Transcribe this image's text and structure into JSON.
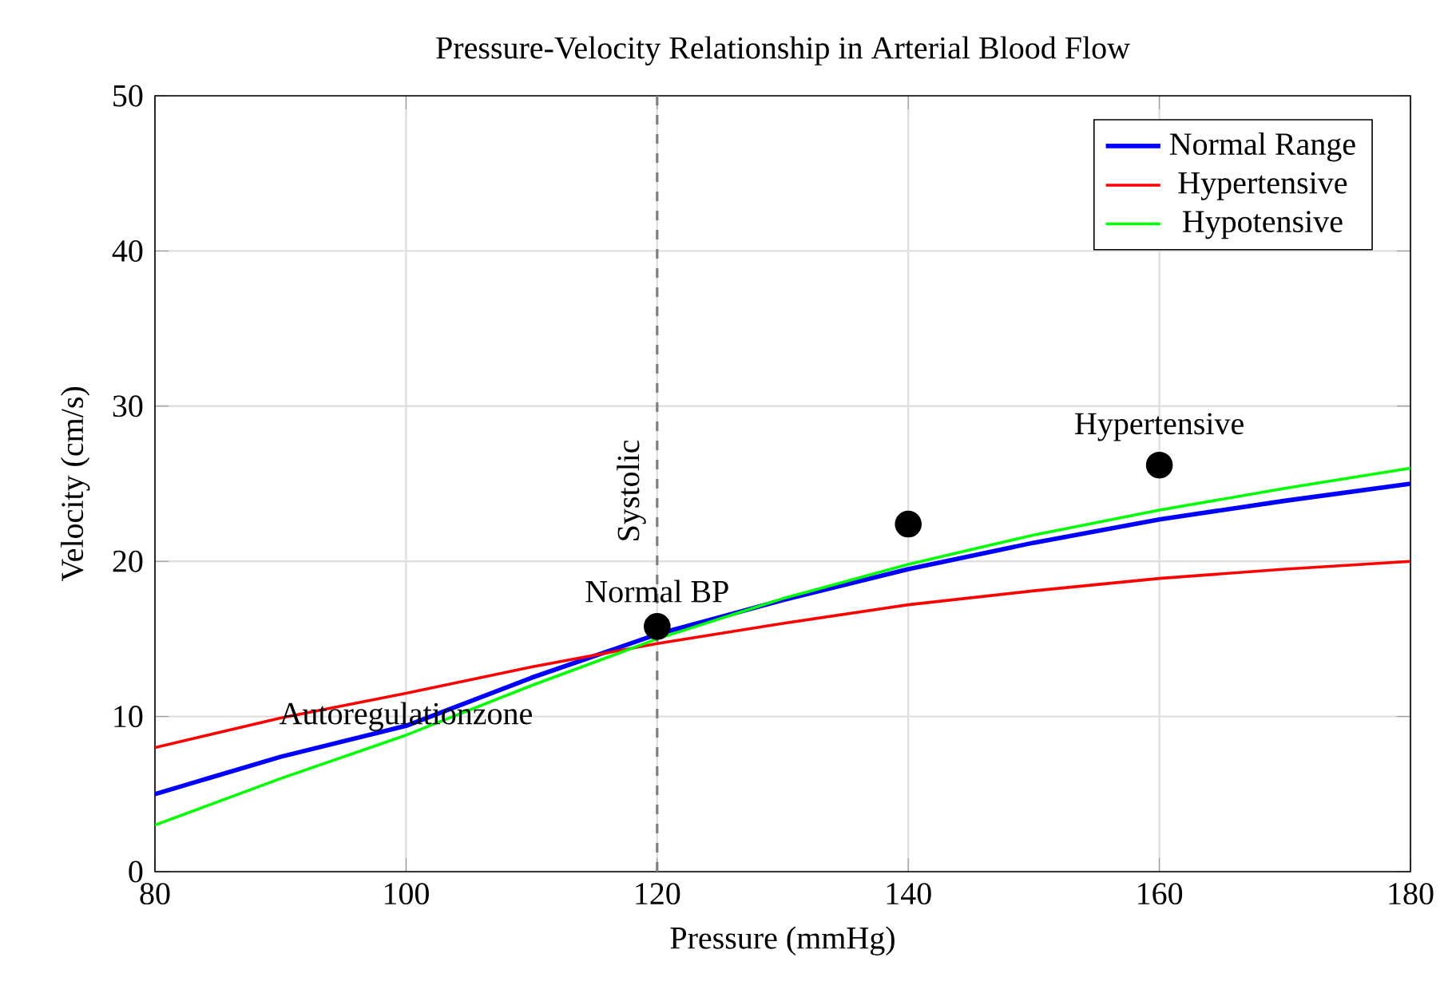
{
  "chart_data": {
    "type": "line",
    "title": "Pressure-Velocity Relationship in Arterial Blood Flow",
    "xlabel": "Pressure (mmHg)",
    "ylabel": "Velocity (cm/s)",
    "xlim": [
      80,
      180
    ],
    "ylim": [
      0,
      50
    ],
    "xticks": [
      80,
      100,
      120,
      140,
      160,
      180
    ],
    "yticks": [
      0,
      10,
      20,
      30,
      40,
      50
    ],
    "grid": true,
    "legend": "top right",
    "marker": "none",
    "line_style": "solid",
    "series": [
      {
        "name": "Normal Range",
        "color": "#0000ff",
        "x": [
          80,
          90,
          100,
          110,
          120,
          130,
          140,
          150,
          160,
          170,
          180
        ],
        "values": [
          5,
          7.4,
          9.4,
          12.5,
          15.3,
          17.5,
          19.5,
          21.2,
          22.7,
          23.9,
          25
        ]
      },
      {
        "name": "Hypertensive",
        "color": "#ff0000",
        "x": [
          80,
          90,
          100,
          110,
          120,
          130,
          140,
          150,
          160,
          170,
          180
        ],
        "values": [
          8,
          9.9,
          11.5,
          13.2,
          14.7,
          16,
          17.2,
          18.1,
          18.9,
          19.5,
          20
        ]
      },
      {
        "name": "Hypotensive",
        "color": "#00ff00",
        "x": [
          80,
          90,
          100,
          110,
          120,
          130,
          140,
          150,
          160,
          170,
          180
        ],
        "values": [
          3,
          6,
          8.8,
          12,
          15,
          17.6,
          19.8,
          21.7,
          23.3,
          24.7,
          26
        ]
      },
      {
        "type": "scatter",
        "marker": "circle",
        "color": "#000000",
        "x": [
          120,
          140,
          160
        ],
        "values": [
          15.8,
          22.4,
          26.2
        ]
      }
    ],
    "ref_lines": [
      {
        "axis": "x",
        "value": 120,
        "label": "Systolic",
        "color": "#808080",
        "line_style": "dashed"
      }
    ],
    "annotations": [
      {
        "text": "Normal BP",
        "x": 120,
        "y": 15.8
      },
      {
        "text": "Hypertensive",
        "x": 160,
        "y": 26.2
      },
      "Autoregulationzone"
    ]
  }
}
